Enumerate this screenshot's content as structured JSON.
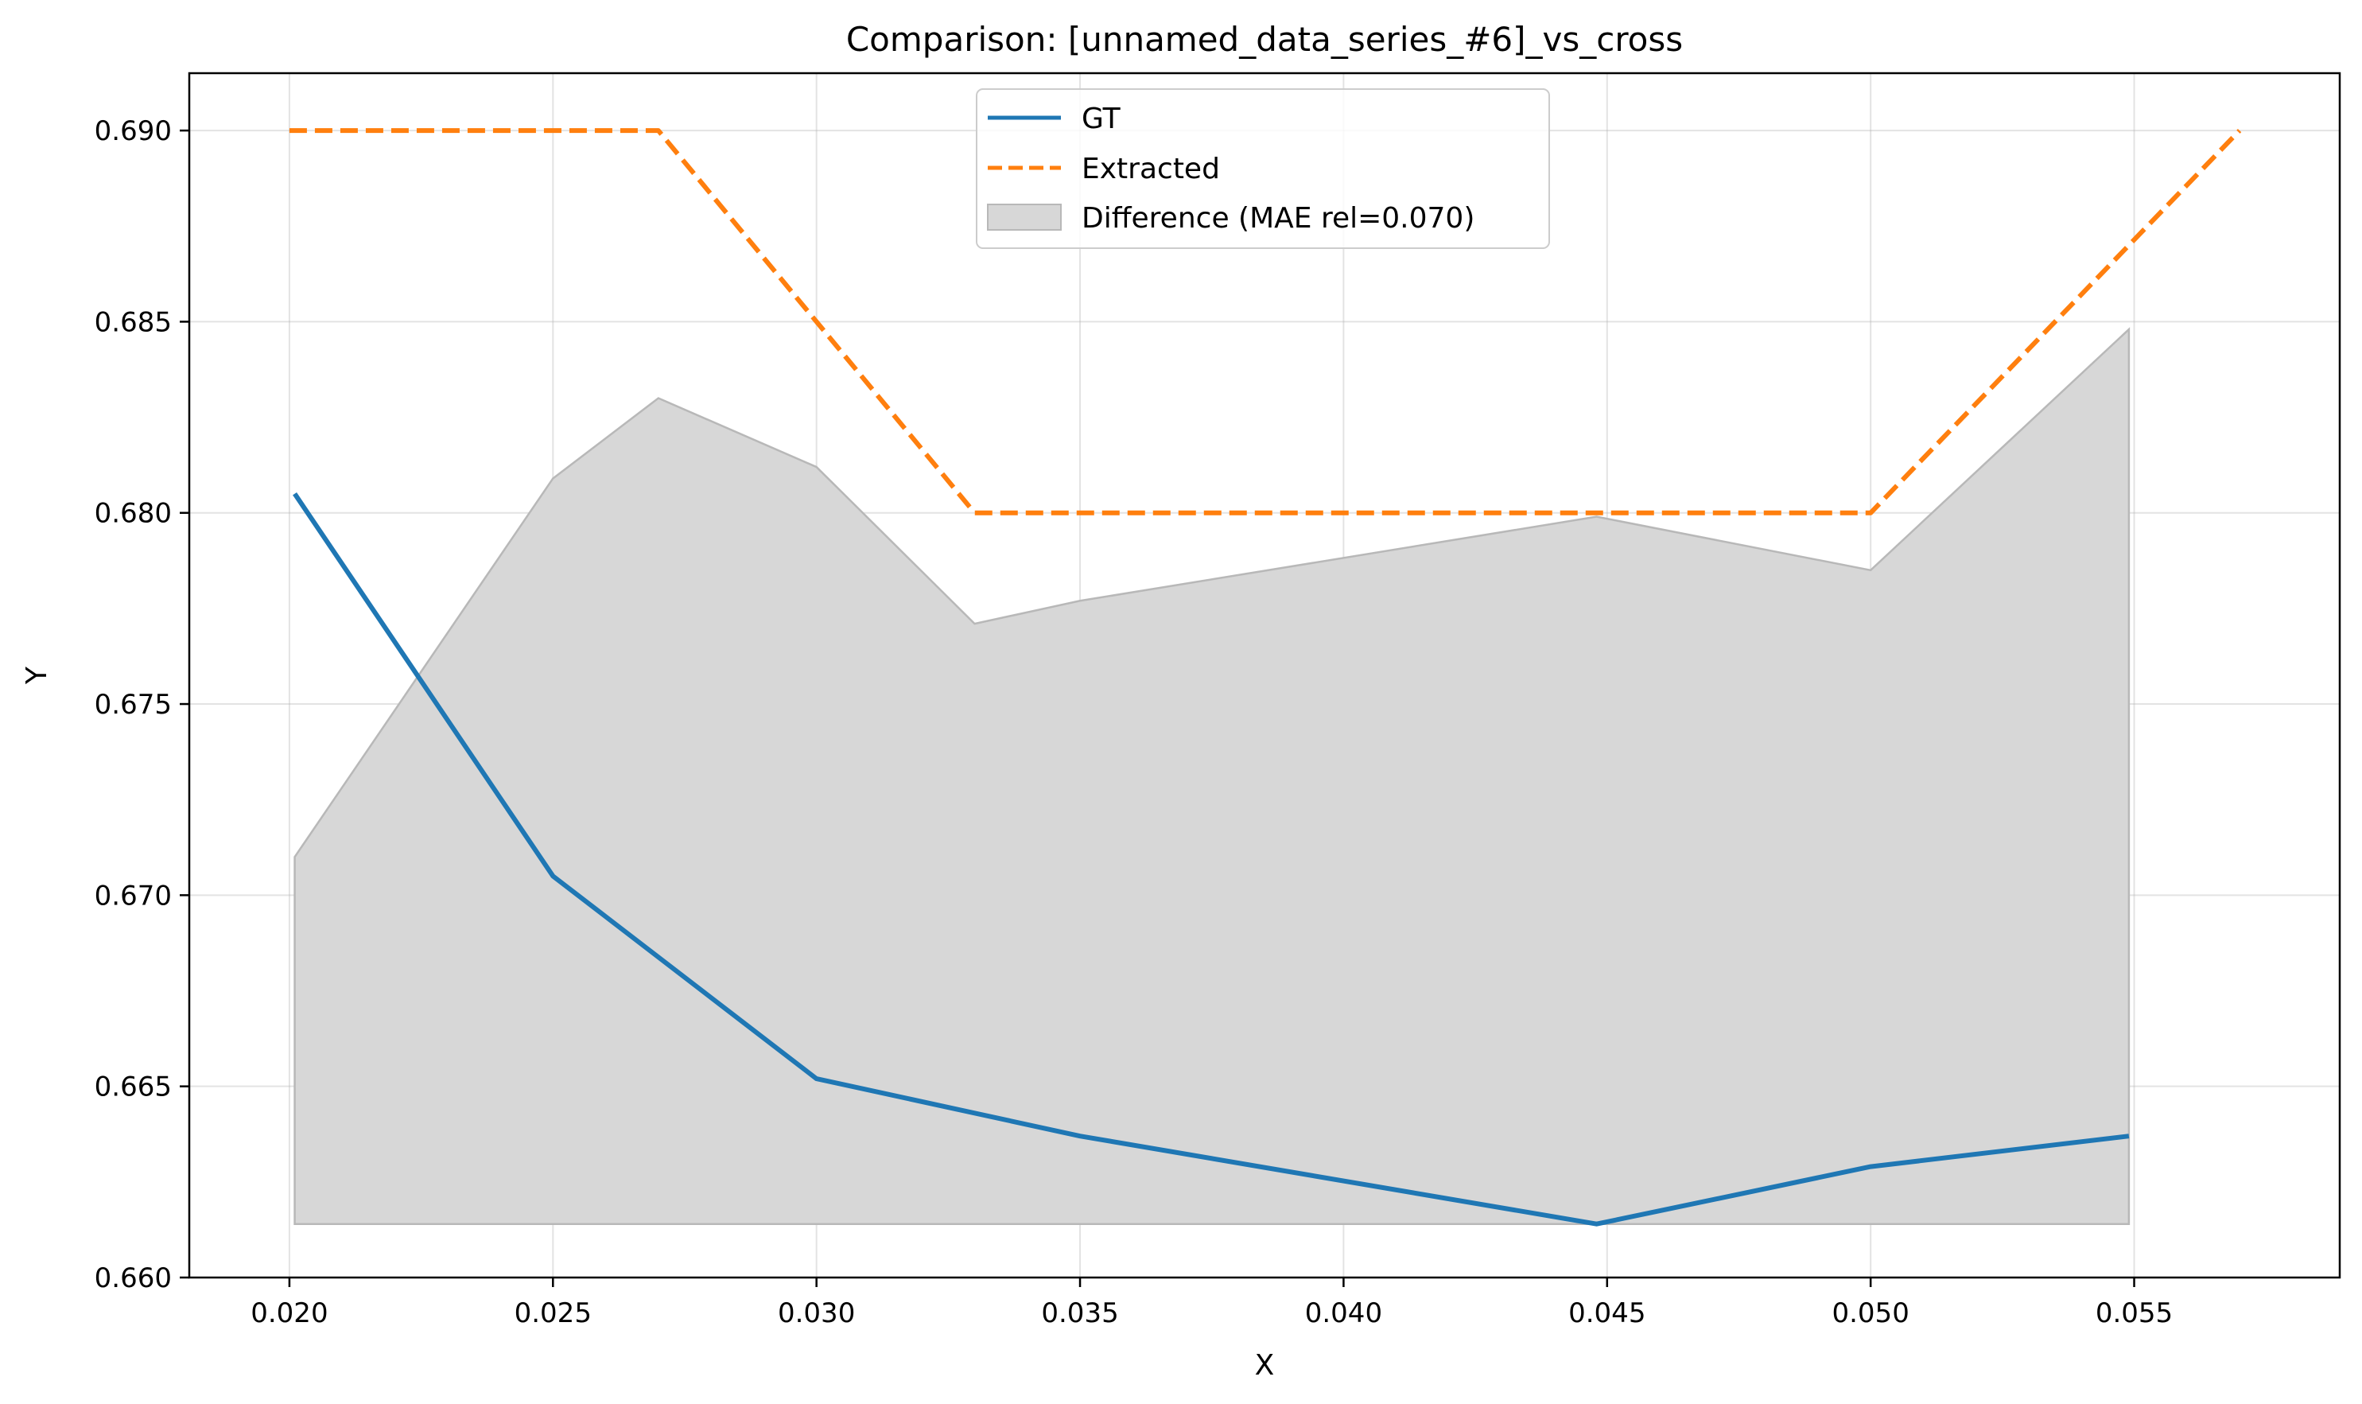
{
  "chart_data": {
    "type": "line",
    "title": "Comparison: [unnamed_data_series_#6]_vs_cross",
    "xlabel": "X",
    "ylabel": "Y",
    "xlim": [
      0.0181,
      0.0589
    ],
    "ylim": [
      0.66,
      0.6915
    ],
    "x_ticks": [
      0.02,
      0.025,
      0.03,
      0.035,
      0.04,
      0.045,
      0.05,
      0.055
    ],
    "x_tick_labels": [
      "0.020",
      "0.025",
      "0.030",
      "0.035",
      "0.040",
      "0.045",
      "0.050",
      "0.055"
    ],
    "y_ticks": [
      0.66,
      0.665,
      0.67,
      0.675,
      0.68,
      0.685,
      0.69
    ],
    "y_tick_labels": [
      "0.660",
      "0.665",
      "0.670",
      "0.675",
      "0.680",
      "0.685",
      "0.690"
    ],
    "grid": true,
    "legend_position": "top-center",
    "series": [
      {
        "name": "GT",
        "style": "solid",
        "color": "#1f77b4",
        "x": [
          0.0201,
          0.025,
          0.03,
          0.035,
          0.0448,
          0.05,
          0.0549
        ],
        "y": [
          0.6805,
          0.6705,
          0.6652,
          0.6637,
          0.6614,
          0.6629,
          0.6637
        ]
      },
      {
        "name": "Extracted",
        "style": "dashed",
        "color": "#ff7f0e",
        "x": [
          0.02,
          0.027,
          0.033,
          0.045,
          0.05,
          0.057
        ],
        "y": [
          0.69,
          0.69,
          0.68,
          0.68,
          0.68,
          0.69
        ]
      }
    ],
    "difference_band": {
      "name": "Difference (MAE rel=0.070)",
      "color": "#d7d7d7",
      "edge_color": "#b8b8b8",
      "x": [
        0.0201,
        0.025,
        0.027,
        0.03,
        0.033,
        0.035,
        0.0448,
        0.05,
        0.0549
      ],
      "upper": [
        0.671,
        0.6809,
        0.683,
        0.6812,
        0.6771,
        0.6777,
        0.6799,
        0.6785,
        0.6848
      ],
      "baseline": 0.6614
    }
  }
}
